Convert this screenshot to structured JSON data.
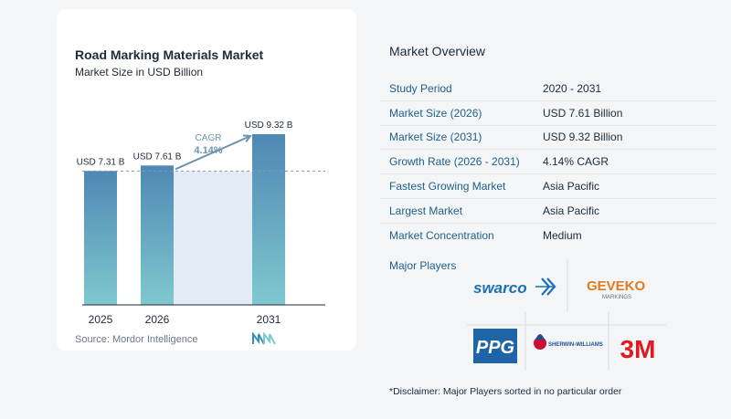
{
  "chart_data": {
    "type": "bar",
    "title": "Road Marking Materials Market",
    "subtitle": "Market Size in USD Billion",
    "categories": [
      "2025",
      "2026",
      "2031"
    ],
    "values": [
      7.31,
      7.61,
      9.32
    ],
    "value_labels": [
      "USD 7.31 B",
      "USD 7.61 B",
      "USD 9.32 B"
    ],
    "cagr_label": "CAGR",
    "cagr_value": "4.14%",
    "ylim": [
      0,
      9.32
    ],
    "reference_value": 7.31,
    "bar_color": "#4f88b4",
    "bar_color_bottom": "#7fc8cf"
  },
  "source": "Source:  Mordor Intelligence",
  "overview": {
    "title": "Market Overview",
    "rows": [
      {
        "label": "Study Period",
        "value": "2020 - 2031"
      },
      {
        "label": "Market Size (2026)",
        "value": "USD 7.61 Billion"
      },
      {
        "label": "Market Size (2031)",
        "value": "USD 9.32 Billion"
      },
      {
        "label": "Growth Rate (2026 - 2031)",
        "value": "4.14% CAGR"
      },
      {
        "label": "Fastest Growing Market",
        "value": "Asia Pacific"
      },
      {
        "label": "Largest Market",
        "value": "Asia Pacific"
      },
      {
        "label": "Market Concentration",
        "value": "Medium"
      }
    ],
    "players_title": "Major Players",
    "players": {
      "swarco": "swarco",
      "geveko": "GEVEKO",
      "geveko_sub": "MARKINGS",
      "ppg": "PPG",
      "sherwin": "SHERWIN-WILLIAMS",
      "threem": "3M"
    },
    "disclaimer": "*Disclaimer: Major Players sorted in no particular order"
  }
}
